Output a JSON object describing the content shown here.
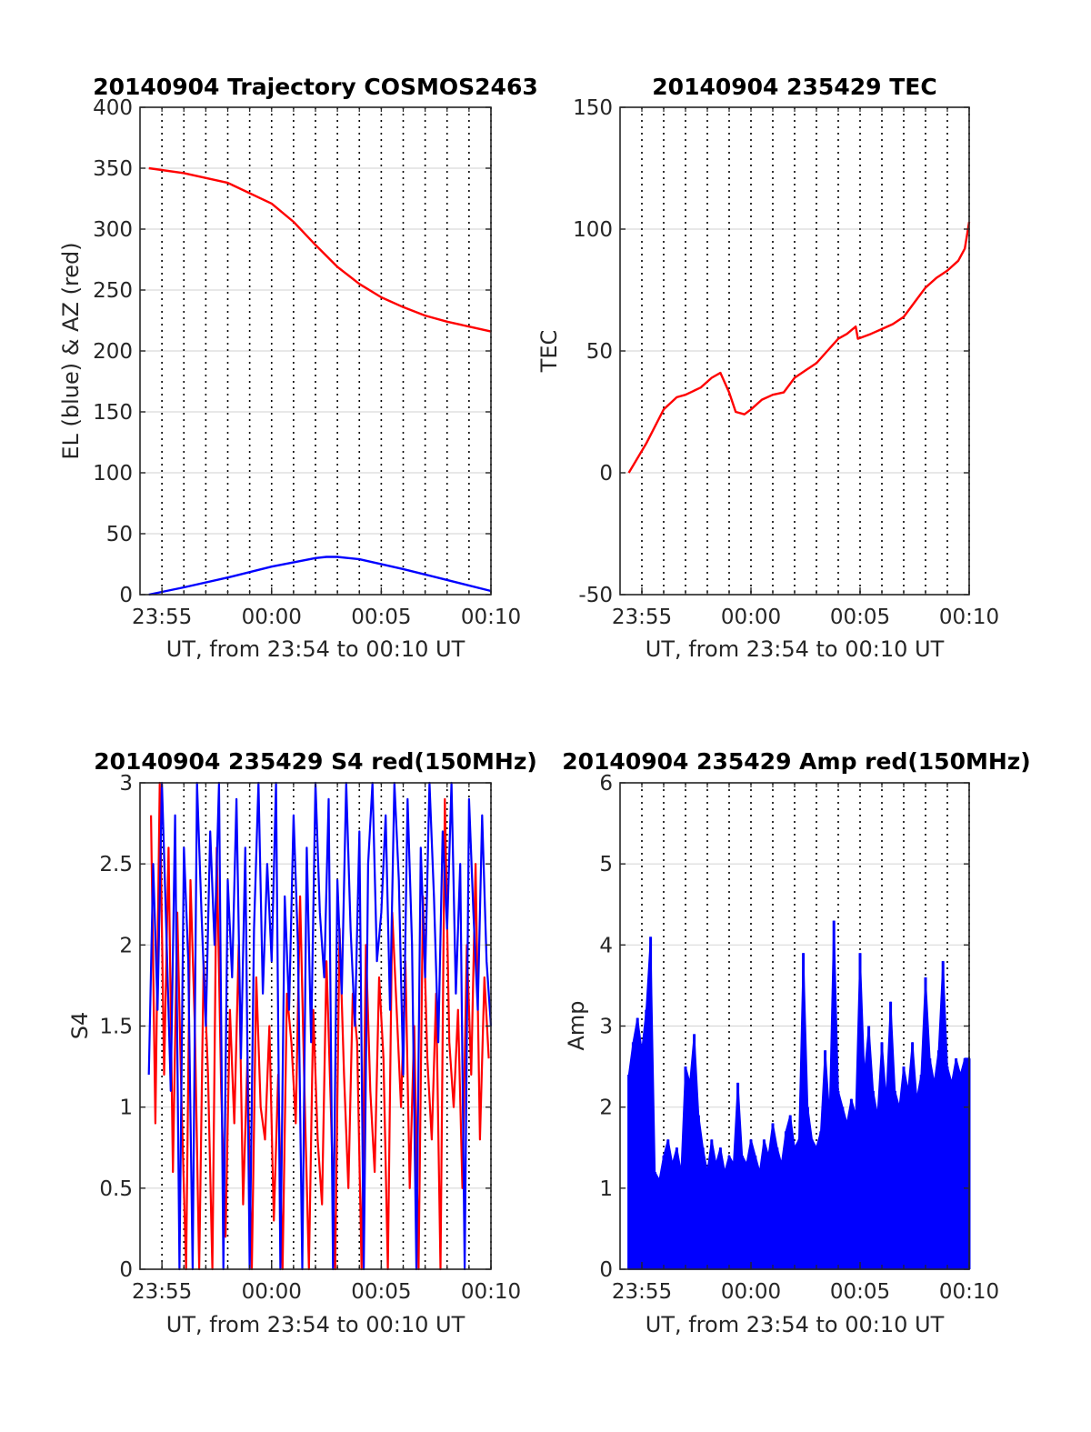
{
  "figure": {
    "background": "#ffffff"
  },
  "colors": {
    "red": "#ff0000",
    "blue": "#0000ff",
    "grid": "#d9d9d9",
    "vline": "#000000",
    "axis": "#262626"
  },
  "chart_data": [
    {
      "type": "line",
      "title": "20140904 Trajectory COSMOS2463",
      "xlabel": "UT, from 23:54 to 00:10 UT",
      "ylabel": "EL (blue) & AZ (red)",
      "xlim": [
        -6,
        10
      ],
      "ylim": [
        0,
        400
      ],
      "xticks": [
        -5,
        0,
        5,
        10
      ],
      "xtick_labels": [
        "23:55",
        "00:00",
        "00:05",
        "00:10"
      ],
      "yticks": [
        0,
        50,
        100,
        150,
        200,
        250,
        300,
        350,
        400
      ],
      "ytick_labels": [
        "0",
        "50",
        "100",
        "150",
        "200",
        "250",
        "300",
        "350",
        "400"
      ],
      "grid": true,
      "vertical_dotted_lines_minutes": [
        -5,
        -4,
        -3,
        -2,
        -1,
        0,
        1,
        2,
        3,
        4,
        5,
        6,
        7,
        8,
        9,
        10
      ],
      "series": [
        {
          "color": "red",
          "x": [
            -5.6,
            -4,
            -2,
            0,
            1,
            2,
            3,
            4,
            5,
            6,
            7,
            8,
            9,
            10
          ],
          "y": [
            350,
            346,
            338,
            321,
            306,
            287,
            269,
            255,
            244,
            236,
            229,
            224,
            220,
            216
          ]
        },
        {
          "color": "blue",
          "x": [
            -5.6,
            -4,
            -2,
            0,
            2,
            2.5,
            3,
            4,
            6,
            8,
            10
          ],
          "y": [
            0,
            6,
            14,
            23,
            30,
            31,
            31,
            29,
            21,
            12,
            3
          ]
        }
      ]
    },
    {
      "type": "line",
      "title": "20140904 235429 TEC",
      "xlabel": "UT, from 23:54 to 00:10 UT",
      "ylabel": "TEC",
      "xlim": [
        -6,
        10
      ],
      "ylim": [
        -50,
        150
      ],
      "xticks": [
        -5,
        0,
        5,
        10
      ],
      "xtick_labels": [
        "23:55",
        "00:00",
        "00:05",
        "00:10"
      ],
      "yticks": [
        -50,
        0,
        50,
        100,
        150
      ],
      "ytick_labels": [
        "-50",
        "0",
        "50",
        "100",
        "150"
      ],
      "grid": true,
      "vertical_dotted_lines_minutes": [
        -5,
        -4,
        -3,
        -2,
        -1,
        0,
        1,
        2,
        3,
        4,
        5,
        6,
        7,
        8,
        9,
        10
      ],
      "series": [
        {
          "color": "red",
          "x": [
            -5.6,
            -4.8,
            -4.0,
            -3.4,
            -3.0,
            -2.3,
            -1.8,
            -1.4,
            -1.0,
            -0.7,
            -0.3,
            0.0,
            0.5,
            1.0,
            1.5,
            2.0,
            2.5,
            3.0,
            3.5,
            4.0,
            4.4,
            4.8,
            4.9,
            5.5,
            6.0,
            6.5,
            7.0,
            7.5,
            8.0,
            8.5,
            9.0,
            9.5,
            9.8,
            10.0
          ],
          "y": [
            0,
            12,
            26,
            31,
            32,
            35,
            39,
            41,
            33,
            25,
            24,
            26,
            30,
            32,
            33,
            39,
            42,
            45,
            50,
            55,
            57,
            60,
            55,
            57,
            59,
            61,
            64,
            70,
            76,
            80,
            83,
            87,
            92,
            103
          ]
        }
      ]
    },
    {
      "type": "line",
      "title": "20140904 235429 S4 red(150MHz)",
      "xlabel": "UT, from 23:54 to 00:10 UT",
      "ylabel": "S4",
      "xlim": [
        -6,
        10
      ],
      "ylim": [
        0,
        3
      ],
      "xticks": [
        -5,
        0,
        5,
        10
      ],
      "xtick_labels": [
        "23:55",
        "00:00",
        "00:05",
        "00:10"
      ],
      "yticks": [
        0,
        0.5,
        1,
        1.5,
        2,
        2.5,
        3
      ],
      "ytick_labels": [
        "0",
        "0.5",
        "1",
        "1.5",
        "2",
        "2.5",
        "3"
      ],
      "grid": true,
      "vertical_dotted_lines_minutes": [
        -5,
        -4,
        -3,
        -2,
        -1,
        0,
        1,
        2,
        3,
        4,
        5,
        6,
        7,
        8,
        9,
        10
      ],
      "series": [
        {
          "color": "red",
          "x": [
            -5.5,
            -5.3,
            -5.1,
            -4.9,
            -4.7,
            -4.5,
            -4.3,
            -4.1,
            -3.9,
            -3.7,
            -3.5,
            -3.3,
            -3.1,
            -2.9,
            -2.7,
            -2.5,
            -2.3,
            -2.1,
            -1.9,
            -1.7,
            -1.5,
            -1.3,
            -1.1,
            -0.9,
            -0.7,
            -0.5,
            -0.3,
            -0.1,
            0.1,
            0.3,
            0.5,
            0.7,
            0.9,
            1.1,
            1.3,
            1.5,
            1.7,
            1.9,
            2.1,
            2.3,
            2.5,
            2.7,
            2.9,
            3.1,
            3.3,
            3.5,
            3.7,
            3.9,
            4.1,
            4.3,
            4.5,
            4.7,
            4.9,
            5.1,
            5.3,
            5.5,
            5.7,
            5.9,
            6.1,
            6.3,
            6.5,
            6.7,
            6.9,
            7.1,
            7.3,
            7.5,
            7.7,
            7.9,
            8.1,
            8.3,
            8.5,
            8.7,
            8.9,
            9.1,
            9.3,
            9.5,
            9.7,
            9.9
          ],
          "y": [
            2.8,
            0.9,
            3.0,
            1.2,
            2.6,
            0.6,
            2.2,
            1.0,
            0.0,
            2.4,
            1.5,
            0.0,
            1.9,
            1.2,
            0.0,
            2.6,
            1.1,
            0.2,
            1.6,
            0.9,
            2.0,
            0.4,
            1.3,
            0.0,
            1.8,
            1.0,
            0.8,
            1.5,
            0.3,
            1.2,
            0.0,
            1.7,
            1.4,
            0.9,
            2.3,
            1.1,
            0.0,
            1.6,
            0.8,
            0.4,
            1.9,
            1.0,
            0.0,
            2.1,
            1.2,
            0.5,
            1.7,
            1.4,
            0.0,
            2.0,
            1.1,
            0.6,
            1.8,
            1.3,
            0.0,
            2.2,
            1.6,
            1.0,
            1.9,
            0.5,
            1.5,
            0.0,
            2.3,
            1.3,
            0.8,
            1.7,
            0.0,
            2.9,
            1.4,
            1.0,
            1.6,
            0.5,
            2.0,
            1.2,
            2.5,
            0.8,
            1.8,
            1.3
          ]
        },
        {
          "color": "blue",
          "x": [
            -5.6,
            -5.4,
            -5.2,
            -5.0,
            -4.8,
            -4.6,
            -4.4,
            -4.2,
            -4.0,
            -3.8,
            -3.6,
            -3.4,
            -3.2,
            -3.0,
            -2.8,
            -2.6,
            -2.4,
            -2.2,
            -2.0,
            -1.8,
            -1.6,
            -1.4,
            -1.2,
            -1.0,
            -0.8,
            -0.6,
            -0.4,
            -0.2,
            0.0,
            0.2,
            0.4,
            0.6,
            0.8,
            1.0,
            1.2,
            1.4,
            1.6,
            1.8,
            2.0,
            2.2,
            2.4,
            2.6,
            2.8,
            3.0,
            3.2,
            3.4,
            3.6,
            3.8,
            4.0,
            4.2,
            4.4,
            4.6,
            4.8,
            5.0,
            5.2,
            5.4,
            5.6,
            5.8,
            6.0,
            6.2,
            6.4,
            6.6,
            6.8,
            7.0,
            7.2,
            7.4,
            7.6,
            7.8,
            8.0,
            8.2,
            8.4,
            8.6,
            8.8,
            9.0,
            9.2,
            9.4,
            9.6,
            9.8,
            10.0
          ],
          "y": [
            1.2,
            2.5,
            1.6,
            3.0,
            2.1,
            1.1,
            2.8,
            0.0,
            2.6,
            1.9,
            0.0,
            3.0,
            2.2,
            1.5,
            2.7,
            2.0,
            3.0,
            0.0,
            2.4,
            1.8,
            2.9,
            1.3,
            2.6,
            0.0,
            2.1,
            3.0,
            1.7,
            2.5,
            1.9,
            3.0,
            0.0,
            2.3,
            1.6,
            2.8,
            2.0,
            0.0,
            2.6,
            1.4,
            3.0,
            2.2,
            1.8,
            2.9,
            0.0,
            2.4,
            1.7,
            3.0,
            2.1,
            1.5,
            2.7,
            0.0,
            2.5,
            3.0,
            1.9,
            2.2,
            2.8,
            1.6,
            3.0,
            2.4,
            1.2,
            2.9,
            2.0,
            0.0,
            2.6,
            1.8,
            3.0,
            2.3,
            1.4,
            2.7,
            2.1,
            3.0,
            1.7,
            2.5,
            0.0,
            2.9,
            2.2,
            1.6,
            2.8,
            1.9,
            1.5
          ]
        }
      ]
    },
    {
      "type": "line",
      "title": "20140904 235429 Amp red(150MHz)",
      "xlabel": "UT, from 23:54 to 00:10 UT",
      "ylabel": "Amp",
      "xlim": [
        -6,
        10
      ],
      "ylim": [
        0,
        6
      ],
      "xticks": [
        -5,
        0,
        5,
        10
      ],
      "xtick_labels": [
        "23:55",
        "00:00",
        "00:05",
        "00:10"
      ],
      "yticks": [
        0,
        1,
        2,
        3,
        4,
        5,
        6
      ],
      "ytick_labels": [
        "0",
        "1",
        "2",
        "3",
        "4",
        "5",
        "6"
      ],
      "grid": true,
      "vertical_dotted_lines_minutes": [
        -5,
        -4,
        -3,
        -2,
        -1,
        0,
        1,
        2,
        3,
        4,
        5,
        6,
        7,
        8,
        9,
        10
      ],
      "series": [
        {
          "color": "blue",
          "style": "filled-spikes",
          "x": [
            -5.6,
            -5.4,
            -5.2,
            -5.0,
            -4.8,
            -4.6,
            -4.4,
            -4.2,
            -4.0,
            -3.8,
            -3.6,
            -3.4,
            -3.2,
            -3.0,
            -2.8,
            -2.6,
            -2.4,
            -2.2,
            -2.0,
            -1.8,
            -1.6,
            -1.4,
            -1.2,
            -1.0,
            -0.8,
            -0.6,
            -0.4,
            -0.2,
            0.0,
            0.2,
            0.4,
            0.6,
            0.8,
            1.0,
            1.2,
            1.4,
            1.6,
            1.8,
            2.0,
            2.2,
            2.4,
            2.6,
            2.8,
            3.0,
            3.2,
            3.4,
            3.6,
            3.8,
            4.0,
            4.2,
            4.4,
            4.6,
            4.8,
            5.0,
            5.2,
            5.4,
            5.6,
            5.8,
            6.0,
            6.2,
            6.4,
            6.6,
            6.8,
            7.0,
            7.2,
            7.4,
            7.6,
            7.8,
            8.0,
            8.2,
            8.4,
            8.6,
            8.8,
            9.0,
            9.2,
            9.4,
            9.6,
            9.8,
            10.0
          ],
          "y": [
            2.4,
            2.8,
            3.1,
            2.7,
            3.2,
            4.1,
            1.2,
            1.1,
            1.4,
            1.6,
            1.3,
            1.5,
            1.2,
            2.5,
            2.3,
            2.9,
            1.9,
            1.5,
            1.2,
            1.6,
            1.3,
            1.5,
            1.2,
            1.4,
            1.3,
            2.3,
            1.4,
            1.3,
            1.6,
            1.4,
            1.2,
            1.6,
            1.4,
            1.8,
            1.5,
            1.3,
            1.7,
            1.9,
            1.5,
            1.6,
            3.9,
            2.0,
            1.6,
            1.5,
            1.7,
            2.7,
            1.9,
            4.3,
            2.2,
            2.0,
            1.8,
            2.1,
            1.9,
            3.9,
            2.4,
            3.0,
            2.2,
            1.9,
            2.8,
            2.1,
            3.3,
            2.2,
            2.0,
            2.5,
            2.2,
            2.8,
            2.1,
            2.4,
            3.6,
            2.6,
            2.3,
            2.7,
            3.8,
            2.5,
            2.3,
            2.6,
            2.4,
            2.6,
            2.6
          ]
        }
      ]
    }
  ]
}
